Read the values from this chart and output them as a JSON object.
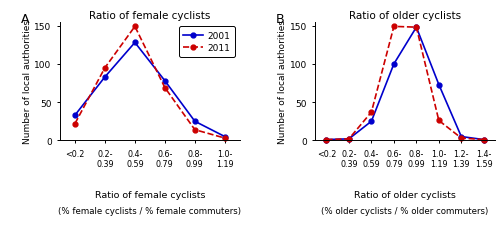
{
  "panel_A": {
    "title": "Ratio of female cyclists",
    "xlabel_line1": "Ratio of female cyclists",
    "xlabel_line2": "(% female cyclists / % female commuters)",
    "ylabel": "Number of local authorities",
    "xtick_labels": [
      "<0.2",
      "0.2-\n0.39",
      "0.4-\n0.59",
      "0.6-\n0.79",
      "0.8-\n0.99",
      "1.0-\n1.19"
    ],
    "x_positions": [
      0,
      1,
      2,
      3,
      4,
      5
    ],
    "y2001": [
      33,
      83,
      128,
      78,
      25,
      5
    ],
    "y2011": [
      22,
      95,
      149,
      69,
      14,
      3
    ],
    "ylim": [
      0,
      155
    ],
    "yticks": [
      0,
      50,
      100,
      150
    ]
  },
  "panel_B": {
    "title": "Ratio of older cyclists",
    "xlabel_line1": "Ratio of older cyclists",
    "xlabel_line2": "(% older cyclists / % older commuters)",
    "ylabel": "Number of local authorities",
    "xtick_labels": [
      "<0.2",
      "0.2-\n0.39",
      "0.4-\n0.59",
      "0.6-\n0.79",
      "0.8-\n0.99",
      "1.0-\n1.19",
      "1.2-\n1.39",
      "1.4-\n1.59"
    ],
    "x_positions": [
      0,
      1,
      2,
      3,
      4,
      5,
      6,
      7
    ],
    "y2001": [
      1,
      2,
      25,
      100,
      148,
      73,
      5,
      1
    ],
    "y2011": [
      1,
      2,
      37,
      149,
      148,
      26,
      3,
      1
    ],
    "ylim": [
      0,
      155
    ],
    "yticks": [
      0,
      50,
      100,
      150
    ]
  },
  "color_2001": "#0000cc",
  "color_2011": "#cc0000",
  "legend_labels": [
    "2001",
    "2011"
  ],
  "panel_labels": [
    "A",
    "B"
  ],
  "marker": "o",
  "markersize": 3.5,
  "linewidth": 1.2
}
